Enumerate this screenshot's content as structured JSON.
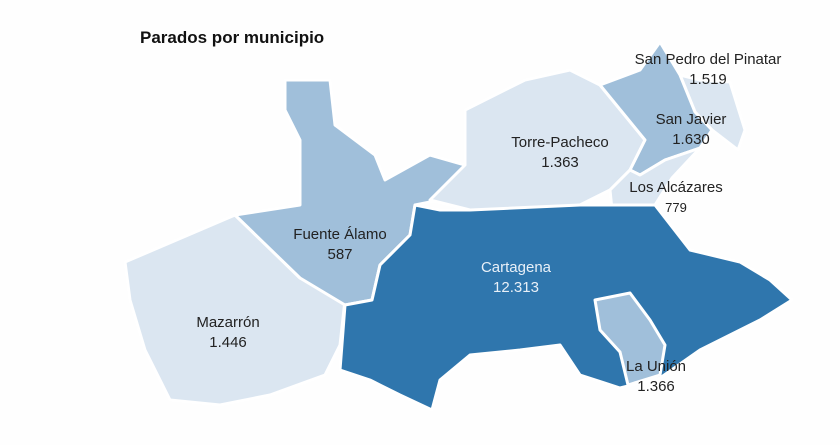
{
  "title": "Parados por municipio",
  "colors": {
    "low": "#dbe6f1",
    "mid": "#a0bfda",
    "high": "#2f76ad"
  },
  "municipios": [
    {
      "name": "Mazarrón",
      "value": "1.446",
      "level": "low"
    },
    {
      "name": "Fuente Álamo",
      "value": "587",
      "level": "mid"
    },
    {
      "name": "Torre-Pacheco",
      "value": "1.363",
      "level": "low"
    },
    {
      "name": "San Pedro del Pinatar",
      "value": "1.519",
      "level": "low"
    },
    {
      "name": "San Javier",
      "value": "1.630",
      "level": "mid"
    },
    {
      "name": "Los Alcázares",
      "value": "779",
      "level": "low"
    },
    {
      "name": "Cartagena",
      "value": "12.313",
      "level": "high"
    },
    {
      "name": "La Unión",
      "value": "1.366",
      "level": "mid"
    }
  ]
}
